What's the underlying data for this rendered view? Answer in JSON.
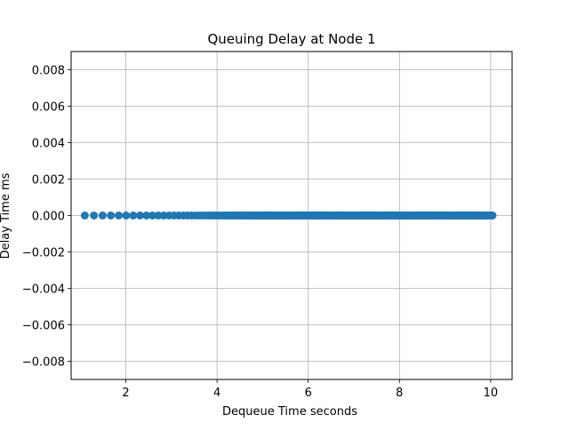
{
  "chart_data": {
    "type": "scatter",
    "title": "Queuing Delay at Node 1",
    "xlabel": "Dequeue Time seconds",
    "ylabel": "Delay Time ms",
    "xlim": [
      0.8,
      10.47
    ],
    "ylim": [
      -0.009,
      0.009
    ],
    "xticks": [
      2,
      4,
      6,
      8,
      10
    ],
    "xtick_labels": [
      "2",
      "4",
      "6",
      "8",
      "10"
    ],
    "yticks": [
      -0.008,
      -0.006,
      -0.004,
      -0.002,
      0.0,
      0.002,
      0.004,
      0.006,
      0.008
    ],
    "ytick_labels": [
      "−0.008",
      "−0.006",
      "−0.004",
      "−0.002",
      "0.000",
      "0.002",
      "0.004",
      "0.006",
      "0.008"
    ],
    "grid": true,
    "legend": "none",
    "series_color": "#1f77b4",
    "series": [
      {
        "x_start": 1.1,
        "x_end": 10.04,
        "y_constant": 0.0,
        "spacing_start": 0.2,
        "spacing_end": 0.02
      }
    ]
  }
}
